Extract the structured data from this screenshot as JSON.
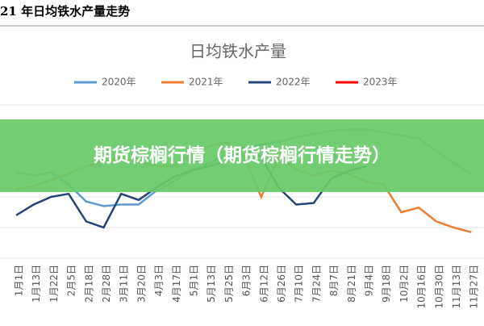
{
  "header": "21 年日均铁水产量走势",
  "banner": "期货棕榈行情（期货棕榈行情走势）",
  "chart_data": {
    "type": "line",
    "title": "日均铁水产量",
    "categories": [
      "1月1日",
      "1月13日",
      "1月22日",
      "2月5日",
      "2月18日",
      "2月28日",
      "3月11日",
      "3月20日",
      "4月3日",
      "4月17日",
      "5月1日",
      "5月13日",
      "5月25日",
      "6月3日",
      "6月12日",
      "6月26日",
      "7月10日",
      "7月24日",
      "8月7日",
      "8月21日",
      "9月4日",
      "9月18日",
      "10月2日",
      "10月16日",
      "10月30日",
      "11月13日",
      "11月27日"
    ],
    "series": [
      {
        "name": "2020年",
        "color": "#5b9bd5",
        "values": [
          56,
          54,
          56,
          48,
          37,
          34,
          35,
          35,
          44,
          50,
          57,
          62,
          68,
          72,
          74,
          76,
          79,
          81,
          83,
          84,
          84,
          82,
          80,
          78,
          70,
          62,
          55
        ]
      },
      {
        "name": "2021年",
        "color": "#ed7d31",
        "values": [
          45,
          47,
          51,
          55,
          60,
          63,
          66,
          63,
          60,
          60,
          68,
          73,
          76,
          67,
          40,
          66,
          58,
          54,
          57,
          55,
          50,
          48,
          30,
          33,
          24,
          20,
          17
        ]
      },
      {
        "name": "2022年",
        "color": "#264478",
        "values": [
          28,
          35,
          40,
          42,
          24,
          20,
          42,
          38,
          46,
          53,
          57,
          60,
          63,
          72,
          66,
          46,
          35,
          36,
          52,
          57,
          60,
          null,
          null,
          null,
          null,
          null,
          null
        ]
      },
      {
        "name": "2023年",
        "color": "#ff0000",
        "values": [
          null,
          null,
          null,
          null,
          null,
          null,
          null,
          null,
          null,
          null,
          null,
          null,
          null,
          null,
          null,
          null,
          null,
          null,
          null,
          null,
          null,
          null,
          null,
          null,
          null,
          null,
          null
        ]
      }
    ],
    "ylim": [
      0,
      100
    ],
    "grid": true
  }
}
